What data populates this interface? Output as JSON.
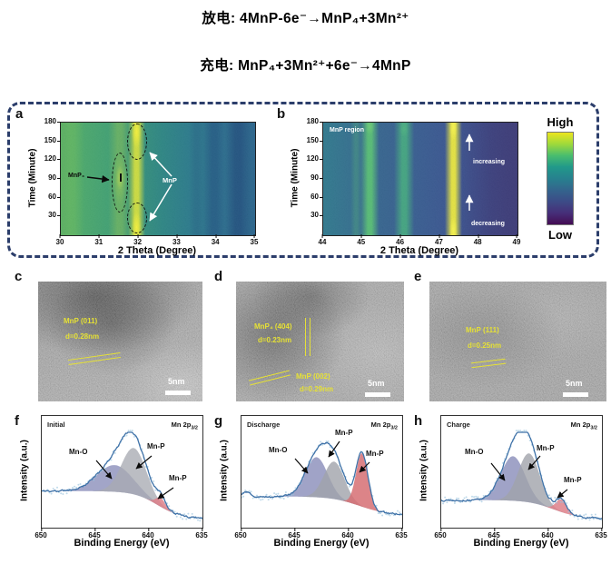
{
  "header": {
    "line1": "放电: 4MnP-6e⁻→MnP₄+3Mn²⁺",
    "line2": "充电: MnP₄+3Mn²⁺+6e⁻→4MnP"
  },
  "panel_letters": {
    "a": "a",
    "b": "b",
    "c": "c",
    "d": "d",
    "e": "e",
    "f": "f",
    "g": "g",
    "h": "h"
  },
  "colorbar": {
    "high": "High",
    "low": "Low",
    "stops": [
      "#ece51f",
      "#9ed93b",
      "#49bd6e",
      "#21998a",
      "#27818e",
      "#33658d",
      "#3c4c87",
      "#462f79",
      "#440c54"
    ]
  },
  "tem": {
    "c": {
      "labels": [
        {
          "text": "MnP (011)"
        },
        {
          "text": "d=0.28nm"
        }
      ],
      "scale_bar": "5nm"
    },
    "d": {
      "labels": [
        {
          "text": "MnP₄ (404)"
        },
        {
          "text": "d=0.23nm"
        },
        {
          "text": "MnP (002)"
        },
        {
          "text": "d=0.29nm"
        }
      ],
      "scale_bar": "5nm"
    },
    "e": {
      "labels": [
        {
          "text": "MnP (111)"
        },
        {
          "text": "d=0.25nm"
        }
      ],
      "scale_bar": "5nm"
    }
  },
  "chart_data": [
    {
      "type": "heatmap",
      "panel": "a",
      "xlabel": "2 Theta (Degree)",
      "ylabel": "Time (Minute)",
      "xlim": [
        30,
        35
      ],
      "ylim": [
        0,
        180
      ],
      "x_ticks": [
        30,
        31,
        32,
        33,
        34,
        35
      ],
      "y_ticks": [
        180,
        150,
        120,
        90,
        60,
        30
      ],
      "base": "linear-gradient(90deg,#5aae61 0%,#4aa76c 12%,#41a072 24%,#369178 38%,#2d8583 52%,#2b7a8b 66%,#2c708e 82%,#2a648b 100%)",
      "bands": [
        {
          "x": 31.95,
          "w": 0.22,
          "color": "rgba(210,222,62,0.95)",
          "phase": "MnP"
        },
        {
          "x": 31.52,
          "w": 0.3,
          "color": "rgba(150,200,80,0.45)",
          "phase": "MnP₄"
        },
        {
          "x": 30.3,
          "w": 0.3,
          "color": "rgba(120,200,90,0.30)"
        },
        {
          "x": 33.5,
          "w": 0.2,
          "color": "rgba(35,90,130,0.30)"
        },
        {
          "x": 33.95,
          "w": 0.3,
          "color": "rgba(30,75,125,0.50)"
        },
        {
          "x": 34.55,
          "w": 0.35,
          "color": "rgba(28,66,118,0.55)"
        }
      ],
      "spots": [
        {
          "x": 31.95,
          "t": 165,
          "rx": 0.17,
          "rt": 35,
          "color": "rgba(244,240,60,0.95)"
        },
        {
          "x": 31.95,
          "t": 12,
          "rx": 0.17,
          "rt": 35,
          "color": "rgba(244,240,60,0.95)"
        },
        {
          "x": 31.52,
          "t": 90,
          "rx": 0.25,
          "rt": 55,
          "color": "rgba(170,212,82,0.45)"
        },
        {
          "x": 31.52,
          "t": 92,
          "rx": 0.13,
          "rt": 26,
          "color": "rgba(208,226,90,0.55)"
        }
      ],
      "annotations": {
        "mnp4": "MnP₄",
        "mnp": "MnP"
      }
    },
    {
      "type": "heatmap",
      "panel": "b",
      "xlabel": "2 Theta (Degree)",
      "ylabel": "Time (Minute)",
      "xlim": [
        44,
        49
      ],
      "ylim": [
        0,
        180
      ],
      "x_ticks": [
        44,
        45,
        46,
        47,
        48,
        49
      ],
      "y_ticks": [
        180,
        150,
        120,
        90,
        60,
        30
      ],
      "base": "linear-gradient(90deg,#30798d 0%,#346e8e 15%,#36648e 30%,#385c90 50%,#3a5590 65%,#3c4c89 80%,#3e4480 92%,#3f3f7b 100%)",
      "bands": [
        {
          "x": 44.85,
          "w": 0.15,
          "color": "rgba(80,175,120,0.35)"
        },
        {
          "x": 45.2,
          "w": 0.24,
          "color": "rgba(90,195,115,0.90)"
        },
        {
          "x": 46.08,
          "w": 0.26,
          "color": "rgba(70,180,125,0.80)"
        },
        {
          "x": 47.35,
          "w": 0.22,
          "color": "rgba(235,232,62,0.95)",
          "phase": "MnP"
        },
        {
          "x": 48.55,
          "w": 1.1,
          "color": "rgba(55,48,110,0.35)"
        }
      ],
      "spots": [
        {
          "x": 47.35,
          "t": 172,
          "rx": 0.14,
          "rt": 28,
          "color": "rgba(247,244,80,0.9)"
        },
        {
          "x": 47.35,
          "t": 8,
          "rx": 0.14,
          "rt": 28,
          "color": "rgba(247,244,80,0.9)"
        },
        {
          "x": 45.2,
          "t": 174,
          "rx": 0.18,
          "rt": 18,
          "color": "rgba(130,215,120,0.5)"
        },
        {
          "x": 46.08,
          "t": 170,
          "rx": 0.18,
          "rt": 18,
          "color": "rgba(90,195,130,0.4)"
        }
      ],
      "annotations": {
        "region": "MnP region",
        "increasing": "increasing",
        "decreasing": "decreasing"
      }
    },
    {
      "type": "line",
      "panel": "f",
      "condition": "Initial",
      "corner": "Mn 2p",
      "corner_sub": "3/2",
      "xlabel": "Binding Energy (eV)",
      "ylabel": "Intensity (a.u.)",
      "x_range": [
        650,
        635
      ],
      "x_ticks": [
        650,
        645,
        640,
        635
      ],
      "baseline": {
        "left": 0.36,
        "right": 0.05,
        "center": 639.2,
        "width": 1.1
      },
      "peaks": [
        {
          "label": "Mn-O",
          "center": 643.2,
          "sigma": 1.65,
          "amplitude": 0.3,
          "color": "rgba(136,140,185,0.78)"
        },
        {
          "label": "Mn-P",
          "center": 641.4,
          "sigma": 1.15,
          "amplitude": 0.52,
          "color": "rgba(168,171,178,0.78)"
        },
        {
          "label": "Mn-P",
          "center": 638.9,
          "sigma": 0.45,
          "amplitude": 0.1,
          "color": "rgba(222,128,138,0.85)"
        }
      ],
      "envelope_color": "#3f72a8",
      "dot_color": "#96c2dc"
    },
    {
      "type": "line",
      "panel": "g",
      "condition": "Discharge",
      "corner": "Mn 2p",
      "corner_sub": "3/2",
      "xlabel": "Binding Energy (eV)",
      "ylabel": "Intensity (a.u.)",
      "x_range": [
        650,
        635
      ],
      "x_ticks": [
        650,
        645,
        640,
        635
      ],
      "baseline": {
        "left": 0.3,
        "right": 0.09,
        "center": 639.0,
        "width": 1.3
      },
      "peaks": [
        {
          "label": "Mn-O",
          "center": 643.0,
          "sigma": 1.05,
          "amplitude": 0.45,
          "color": "rgba(136,140,185,0.80)"
        },
        {
          "label": "Mn-P",
          "center": 641.35,
          "sigma": 0.95,
          "amplitude": 0.42,
          "color": "rgba(160,163,170,0.80)"
        },
        {
          "label": "Mn-P",
          "center": 638.75,
          "sigma": 0.55,
          "amplitude": 0.6,
          "color": "rgba(214,110,115,0.85)"
        },
        {
          "center": 649.55,
          "sigma": 0.35,
          "amplitude": 0.05,
          "color": null
        }
      ],
      "envelope_color": "#3f72a8",
      "dot_color": "#96c2dc"
    },
    {
      "type": "line",
      "panel": "h",
      "condition": "Charge",
      "corner": "Mn 2p",
      "corner_sub": "3/2",
      "xlabel": "Binding Energy (eV)",
      "ylabel": "Intensity (a.u.)",
      "x_range": [
        650,
        635
      ],
      "x_ticks": [
        650,
        645,
        640,
        635
      ],
      "baseline": {
        "left": 0.26,
        "right": 0.05,
        "center": 639.5,
        "width": 1.2
      },
      "peaks": [
        {
          "label": "Mn-O",
          "center": 643.3,
          "sigma": 1.12,
          "amplitude": 0.5,
          "color": "rgba(136,140,185,0.80)"
        },
        {
          "label": "Mn-P",
          "center": 641.8,
          "sigma": 1.0,
          "amplitude": 0.55,
          "color": "rgba(160,163,170,0.80)"
        },
        {
          "label": "Mn-P",
          "center": 638.8,
          "sigma": 0.5,
          "amplitude": 0.14,
          "color": "rgba(222,128,138,0.85)"
        }
      ],
      "envelope_color": "#3f72a8",
      "dot_color": "#96c2dc"
    }
  ]
}
